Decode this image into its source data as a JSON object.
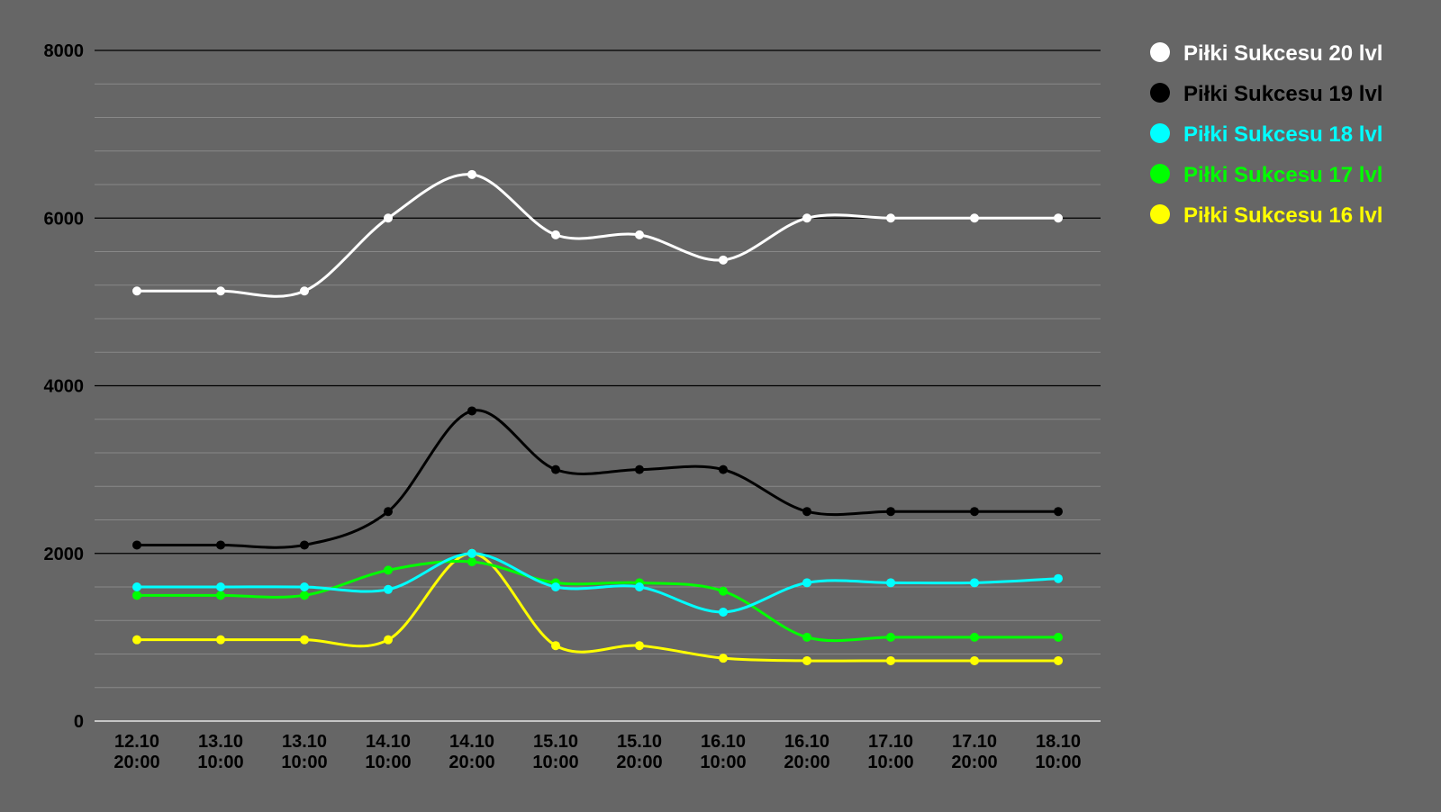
{
  "chart_data": {
    "type": "line",
    "title": "",
    "xlabel": "",
    "ylabel": "",
    "ylim": [
      0,
      8000
    ],
    "yticks": [
      0,
      2000,
      4000,
      6000,
      8000
    ],
    "minor_grid_step": 400,
    "grid": true,
    "legend_position": "top-right",
    "curve": "smooth",
    "background_color": "#666666",
    "categories": [
      [
        "12.10",
        "20:00"
      ],
      [
        "13.10",
        "10:00"
      ],
      [
        "13.10",
        "10:00"
      ],
      [
        "14.10",
        "10:00"
      ],
      [
        "14.10",
        "20:00"
      ],
      [
        "15.10",
        "10:00"
      ],
      [
        "15.10",
        "20:00"
      ],
      [
        "16.10",
        "10:00"
      ],
      [
        "16.10",
        "20:00"
      ],
      [
        "17.10",
        "10:00"
      ],
      [
        "17.10",
        "20:00"
      ],
      [
        "18.10",
        "10:00"
      ]
    ],
    "series": [
      {
        "name": "Piłki Sukcesu 20 lvl",
        "color": "#ffffff",
        "values": [
          5130,
          5130,
          5130,
          6000,
          6520,
          5800,
          5800,
          5500,
          6000,
          6000,
          6000,
          6000
        ]
      },
      {
        "name": "Piłki Sukcesu 19 lvl",
        "color": "#000000",
        "values": [
          2100,
          2100,
          2100,
          2500,
          3700,
          3000,
          3000,
          3000,
          2500,
          2500,
          2500,
          2500
        ]
      },
      {
        "name": "Piłki Sukcesu 18 lvl",
        "color": "#00ffff",
        "values": [
          1600,
          1600,
          1600,
          1570,
          2000,
          1600,
          1600,
          1300,
          1650,
          1650,
          1650,
          1700
        ]
      },
      {
        "name": "Piłki Sukcesu 17 lvl",
        "color": "#00ff00",
        "values": [
          1500,
          1500,
          1500,
          1800,
          1900,
          1650,
          1650,
          1550,
          1000,
          1000,
          1000,
          1000
        ]
      },
      {
        "name": "Piłki Sukcesu 16 lvl",
        "color": "#ffff00",
        "values": [
          970,
          970,
          970,
          970,
          2000,
          900,
          900,
          750,
          720,
          720,
          720,
          720
        ]
      }
    ]
  }
}
